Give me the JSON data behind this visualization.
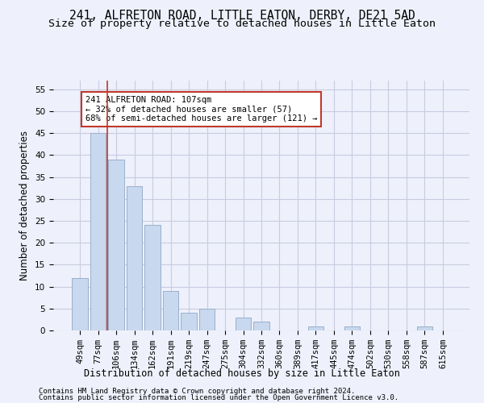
{
  "title_line1": "241, ALFRETON ROAD, LITTLE EATON, DERBY, DE21 5AD",
  "title_line2": "Size of property relative to detached houses in Little Eaton",
  "xlabel": "Distribution of detached houses by size in Little Eaton",
  "ylabel": "Number of detached properties",
  "categories": [
    "49sqm",
    "77sqm",
    "106sqm",
    "134sqm",
    "162sqm",
    "191sqm",
    "219sqm",
    "247sqm",
    "275sqm",
    "304sqm",
    "332sqm",
    "360sqm",
    "389sqm",
    "417sqm",
    "445sqm",
    "474sqm",
    "502sqm",
    "530sqm",
    "558sqm",
    "587sqm",
    "615sqm"
  ],
  "values": [
    12,
    45,
    39,
    33,
    24,
    9,
    4,
    5,
    0,
    3,
    2,
    0,
    0,
    1,
    0,
    1,
    0,
    0,
    0,
    1,
    0
  ],
  "bar_color": "#c8d8ee",
  "bar_edge_color": "#9ab0cc",
  "vline_x": 1.5,
  "vline_color": "#c0392b",
  "annotation_text": "241 ALFRETON ROAD: 107sqm\n← 32% of detached houses are smaller (57)\n68% of semi-detached houses are larger (121) →",
  "annotation_box_color": "white",
  "annotation_box_edge": "#c0392b",
  "ylim": [
    0,
    57
  ],
  "yticks": [
    0,
    5,
    10,
    15,
    20,
    25,
    30,
    35,
    40,
    45,
    50,
    55
  ],
  "footer_line1": "Contains HM Land Registry data © Crown copyright and database right 2024.",
  "footer_line2": "Contains public sector information licensed under the Open Government Licence v3.0.",
  "background_color": "#eef1fb",
  "grid_color": "#c8cce0",
  "title_fontsize": 10.5,
  "subtitle_fontsize": 9.5,
  "tick_fontsize": 7.5,
  "label_fontsize": 8.5,
  "footer_fontsize": 6.5
}
